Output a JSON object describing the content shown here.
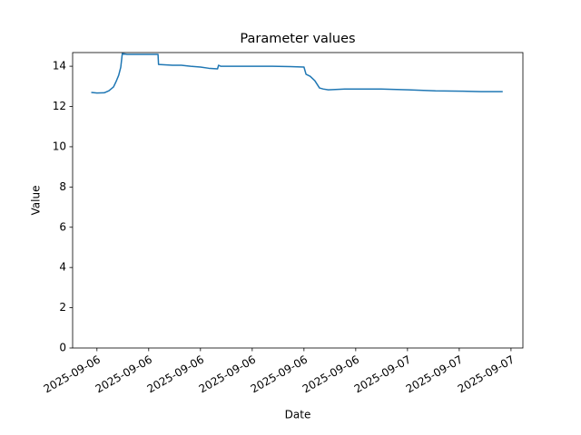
{
  "chart_data": {
    "type": "line",
    "title": "Parameter values",
    "x_label": "Date",
    "y_label": "Value",
    "x": [
      -0.11,
      0,
      0.14,
      0.23,
      0.32,
      0.37,
      0.42,
      0.46,
      0.49,
      0.58,
      1.11,
      1.18,
      1.19,
      1.46,
      1.63,
      1.81,
      2.0,
      2.16,
      2.33,
      2.35,
      2.39,
      2.68,
      3.39,
      3.74,
      4.0,
      4.04,
      4.12,
      4.21,
      4.3,
      4.37,
      4.47,
      4.79,
      5.49,
      6.02,
      6.54,
      7.07,
      7.42,
      7.84
    ],
    "series": [
      {
        "name": "Value",
        "color": "#1f77b4",
        "values": [
          12.7,
          12.67,
          12.68,
          12.78,
          12.97,
          13.24,
          13.55,
          13.95,
          14.63,
          14.59,
          14.59,
          14.59,
          14.09,
          14.05,
          14.05,
          14.0,
          13.96,
          13.9,
          13.87,
          14.05,
          14.0,
          14.0,
          14.0,
          13.98,
          13.96,
          13.6,
          13.5,
          13.28,
          12.92,
          12.87,
          12.83,
          12.87,
          12.87,
          12.83,
          12.78,
          12.76,
          12.74,
          12.74
        ]
      }
    ],
    "xlim": [
      -0.47,
      8.23
    ],
    "xticks": [
      {
        "value": 0,
        "label": "2025-09-06"
      },
      {
        "value": 1,
        "label": "2025-09-06"
      },
      {
        "value": 2,
        "label": "2025-09-06"
      },
      {
        "value": 3,
        "label": "2025-09-06"
      },
      {
        "value": 4,
        "label": "2025-09-06"
      },
      {
        "value": 5,
        "label": "2025-09-06"
      },
      {
        "value": 6,
        "label": "2025-09-07"
      },
      {
        "value": 7,
        "label": "2025-09-07"
      },
      {
        "value": 8,
        "label": "2025-09-07"
      }
    ],
    "ylim": [
      0,
      14.68
    ],
    "yticks": [
      0,
      2,
      4,
      6,
      8,
      10,
      12,
      14
    ],
    "grid": false
  }
}
